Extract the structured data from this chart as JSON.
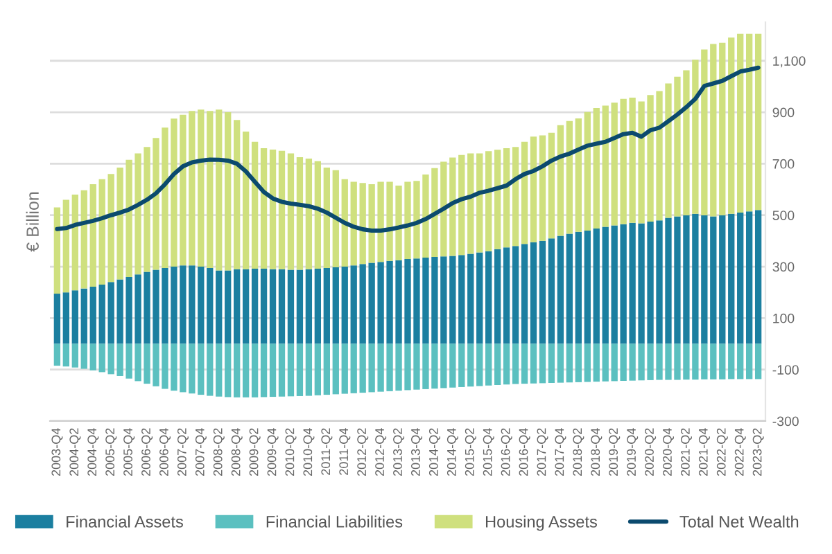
{
  "chart_data": {
    "type": "bar",
    "stacked": true,
    "ylabel": "€ Billion",
    "categories": [
      "2003-Q4",
      null,
      "2004-Q2",
      null,
      "2004-Q4",
      null,
      "2005-Q2",
      null,
      "2005-Q4",
      null,
      "2006-Q2",
      null,
      "2006-Q4",
      null,
      "2007-Q2",
      null,
      "2007-Q4",
      null,
      "2008-Q2",
      null,
      "2008-Q4",
      null,
      "2009-Q2",
      null,
      "2009-Q4",
      null,
      "2010-Q2",
      null,
      "2010-Q4",
      null,
      "2011-Q2",
      null,
      "2011-Q4",
      null,
      "2012-Q2",
      null,
      "2012-Q4",
      null,
      "2013-Q2",
      null,
      "2013-Q4",
      null,
      "2014-Q2",
      null,
      "2014-Q4",
      null,
      "2015-Q2",
      null,
      "2015-Q4",
      null,
      "2016-Q2",
      null,
      "2016-Q4",
      null,
      "2017-Q2",
      null,
      "2017-Q4",
      null,
      "2018-Q2",
      null,
      "2018-Q4",
      null,
      "2019-Q2",
      null,
      "2019-Q4",
      null,
      "2020-Q2",
      null,
      "2020-Q4",
      null,
      "2021-Q2",
      null,
      "2021-Q4",
      null,
      "2022-Q2",
      null,
      "2022-Q4",
      null,
      "2023-Q2"
    ],
    "series": [
      {
        "name": "Financial Assets",
        "color": "#1b7fa0",
        "values": [
          195,
          200,
          208,
          215,
          222,
          230,
          240,
          250,
          260,
          270,
          280,
          288,
          295,
          300,
          305,
          305,
          300,
          295,
          285,
          285,
          290,
          290,
          292,
          292,
          290,
          290,
          288,
          288,
          290,
          292,
          295,
          298,
          300,
          305,
          310,
          315,
          318,
          322,
          325,
          330,
          332,
          335,
          338,
          340,
          342,
          345,
          350,
          355,
          360,
          368,
          375,
          380,
          388,
          395,
          400,
          410,
          420,
          428,
          435,
          440,
          448,
          455,
          460,
          465,
          470,
          468,
          475,
          480,
          490,
          495,
          500,
          505,
          500,
          495,
          500,
          505,
          510,
          515,
          520
        ]
      },
      {
        "name": "Financial Liabilities",
        "color": "#5bc0c0",
        "values": [
          -85,
          -88,
          -92,
          -97,
          -103,
          -110,
          -118,
          -125,
          -135,
          -145,
          -155,
          -165,
          -175,
          -182,
          -188,
          -193,
          -198,
          -202,
          -205,
          -207,
          -208,
          -208,
          -208,
          -207,
          -206,
          -205,
          -204,
          -203,
          -202,
          -200,
          -198,
          -196,
          -194,
          -192,
          -190,
          -188,
          -186,
          -184,
          -182,
          -180,
          -178,
          -176,
          -174,
          -172,
          -170,
          -168,
          -166,
          -164,
          -162,
          -160,
          -158,
          -156,
          -155,
          -154,
          -153,
          -152,
          -151,
          -150,
          -149,
          -148,
          -147,
          -146,
          -145,
          -144,
          -143,
          -142,
          -141,
          -140,
          -140,
          -140,
          -139,
          -139,
          -138,
          -138,
          -138,
          -137,
          -137,
          -137,
          -137
        ]
      },
      {
        "name": "Housing Assets",
        "color": "#cfe07e",
        "values": [
          335,
          360,
          372,
          382,
          398,
          410,
          420,
          435,
          455,
          470,
          485,
          512,
          545,
          575,
          585,
          600,
          610,
          610,
          625,
          615,
          580,
          535,
          493,
          468,
          465,
          460,
          452,
          437,
          430,
          418,
          390,
          377,
          340,
          325,
          315,
          305,
          312,
          308,
          290,
          300,
          301,
          323,
          345,
          368,
          382,
          389,
          390,
          385,
          389,
          386,
          385,
          385,
          397,
          410,
          410,
          410,
          430,
          438,
          441,
          461,
          468,
          471,
          477,
          487,
          487,
          474,
          492,
          502,
          522,
          543,
          563,
          599,
          644,
          670,
          670,
          685,
          695,
          690,
          685
        ]
      },
      {
        "name": "Total Net Wealth",
        "type": "line",
        "color": "#0b4a6e",
        "values": [
          446,
          450,
          462,
          470,
          478,
          488,
          500,
          510,
          522,
          540,
          560,
          585,
          620,
          660,
          690,
          705,
          712,
          716,
          715,
          712,
          700,
          670,
          630,
          590,
          565,
          552,
          545,
          540,
          535,
          525,
          510,
          490,
          470,
          455,
          445,
          440,
          440,
          445,
          452,
          460,
          470,
          485,
          505,
          525,
          547,
          562,
          572,
          587,
          595,
          605,
          615,
          640,
          660,
          672,
          690,
          712,
          728,
          739,
          755,
          770,
          778,
          785,
          800,
          815,
          820,
          805,
          830,
          840,
          865,
          891,
          920,
          952,
          1002,
          1012,
          1022,
          1040,
          1058,
          1065,
          1073
        ]
      }
    ],
    "ylim": [
      -300,
      1250
    ],
    "yticks": [
      -300,
      -100,
      100,
      300,
      500,
      700,
      900,
      {
        "value": 1100,
        "label": "1,100"
      }
    ],
    "grid": "y",
    "legend": "bottom"
  }
}
